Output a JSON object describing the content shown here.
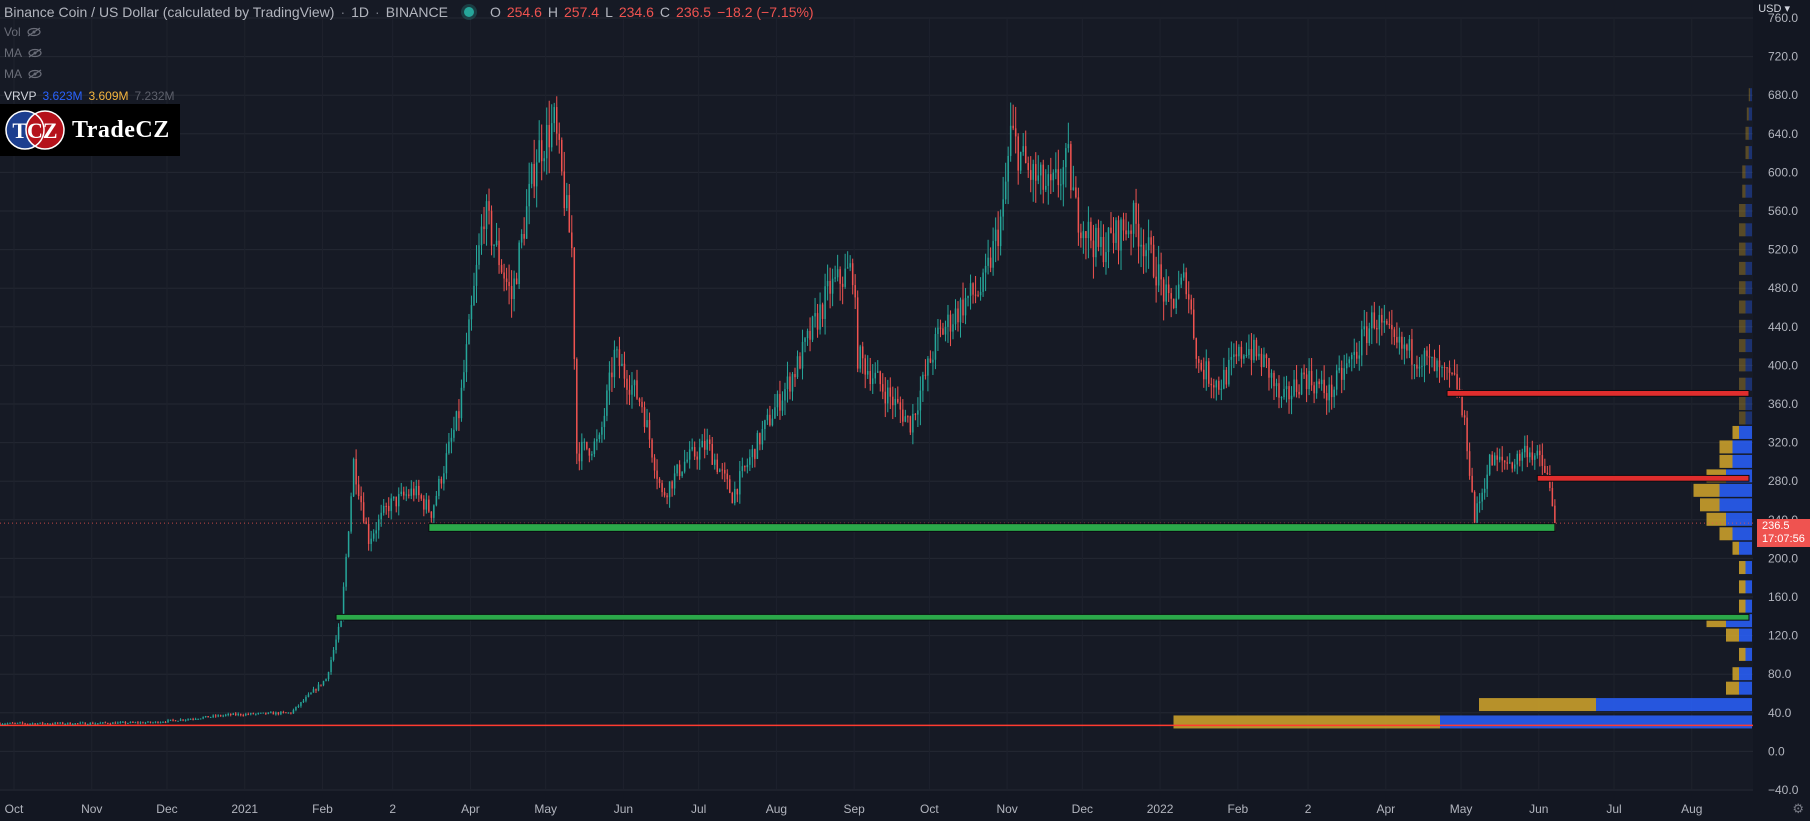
{
  "header": {
    "symbol_title": "Binance Coin / US Dollar (calculated by TradingView)",
    "interval": "1D",
    "exchange": "BINANCE",
    "ohlc": {
      "o_key": "O",
      "o_val": "254.6",
      "h_key": "H",
      "h_val": "257.4",
      "l_key": "L",
      "l_val": "234.6",
      "c_key": "C",
      "c_val": "236.5",
      "change": "−18.2 (−7.15%)"
    },
    "status_color": "#26a69a"
  },
  "indicators": [
    {
      "label": "Vol",
      "icon": "eye-hidden-icon"
    },
    {
      "label": "MA",
      "icon": "eye-hidden-icon"
    },
    {
      "label": "MA",
      "icon": "eye-hidden-icon"
    }
  ],
  "vrvp": {
    "label": "VRVP",
    "up_volume": "3.623M",
    "down_volume": "3.609M",
    "total_volume": "7.232M"
  },
  "logo": {
    "badge_text": "TCZ",
    "brand_text": "TradeCZ"
  },
  "price_axis": {
    "currency": "USD",
    "ticks": [
      "760.0",
      "720.0",
      "680.0",
      "640.0",
      "600.0",
      "560.0",
      "520.0",
      "480.0",
      "440.0",
      "400.0",
      "360.0",
      "320.0",
      "280.0",
      "240.0",
      "200.0",
      "160.0",
      "120.0",
      "80.0",
      "40.0",
      "0.0",
      "−40.0"
    ],
    "last_price": "236.5",
    "countdown": "17:07:56",
    "last_price_color": "#ef5350"
  },
  "time_axis": {
    "labels": [
      "Oct",
      "Nov",
      "Dec",
      "2021",
      "Feb",
      "2",
      "Apr",
      "May",
      "Jun",
      "Jul",
      "Aug",
      "Sep",
      "Oct",
      "Nov",
      "Dec",
      "2022",
      "Feb",
      "2",
      "Apr",
      "May",
      "Jun",
      "Jul",
      "Aug"
    ]
  },
  "colors": {
    "background": "#161a25",
    "up_candle": "#26a69a",
    "down_candle": "#ef5350",
    "support_zone": "#2ba84a",
    "resistance_zone": "#e02d2d",
    "horizontal_line": "#ff3b30",
    "vp_up": "#2962ff",
    "vp_down": "#d4a72c"
  },
  "chart_data": {
    "type": "candlestick",
    "title": "Binance Coin / US Dollar (calculated by TradingView)",
    "interval": "1D",
    "ylim": [
      -40,
      760
    ],
    "x_range": [
      "2020-10-01",
      "2022-08-31"
    ],
    "price_path": [
      {
        "date": "2020-10-01",
        "price": 29
      },
      {
        "date": "2020-11-01",
        "price": 29
      },
      {
        "date": "2020-12-01",
        "price": 30
      },
      {
        "date": "2021-01-01",
        "price": 38
      },
      {
        "date": "2021-01-25",
        "price": 40
      },
      {
        "date": "2021-02-08",
        "price": 75
      },
      {
        "date": "2021-02-14",
        "price": 135
      },
      {
        "date": "2021-02-19",
        "price": 300
      },
      {
        "date": "2021-02-25",
        "price": 220
      },
      {
        "date": "2021-03-05",
        "price": 255
      },
      {
        "date": "2021-03-15",
        "price": 270
      },
      {
        "date": "2021-03-22",
        "price": 248
      },
      {
        "date": "2021-04-02",
        "price": 350
      },
      {
        "date": "2021-04-12",
        "price": 560
      },
      {
        "date": "2021-04-23",
        "price": 470
      },
      {
        "date": "2021-05-03",
        "price": 620
      },
      {
        "date": "2021-05-10",
        "price": 650
      },
      {
        "date": "2021-05-17",
        "price": 520
      },
      {
        "date": "2021-05-19",
        "price": 310
      },
      {
        "date": "2021-05-28",
        "price": 320
      },
      {
        "date": "2021-06-03",
        "price": 410
      },
      {
        "date": "2021-06-14",
        "price": 360
      },
      {
        "date": "2021-06-22",
        "price": 265
      },
      {
        "date": "2021-07-01",
        "price": 300
      },
      {
        "date": "2021-07-10",
        "price": 318
      },
      {
        "date": "2021-07-20",
        "price": 265
      },
      {
        "date": "2021-08-01",
        "price": 330
      },
      {
        "date": "2021-08-15",
        "price": 400
      },
      {
        "date": "2021-08-28",
        "price": 480
      },
      {
        "date": "2021-09-06",
        "price": 500
      },
      {
        "date": "2021-09-08",
        "price": 410
      },
      {
        "date": "2021-09-20",
        "price": 370
      },
      {
        "date": "2021-09-29",
        "price": 340
      },
      {
        "date": "2021-10-10",
        "price": 430
      },
      {
        "date": "2021-10-22",
        "price": 470
      },
      {
        "date": "2021-10-28",
        "price": 480
      },
      {
        "date": "2021-11-05",
        "price": 560
      },
      {
        "date": "2021-11-08",
        "price": 640
      },
      {
        "date": "2021-11-15",
        "price": 600
      },
      {
        "date": "2021-11-24",
        "price": 580
      },
      {
        "date": "2021-12-01",
        "price": 610
      },
      {
        "date": "2021-12-04",
        "price": 560
      },
      {
        "date": "2021-12-13",
        "price": 520
      },
      {
        "date": "2021-12-27",
        "price": 550
      },
      {
        "date": "2022-01-05",
        "price": 500
      },
      {
        "date": "2022-01-10",
        "price": 460
      },
      {
        "date": "2022-01-17",
        "price": 490
      },
      {
        "date": "2022-01-22",
        "price": 400
      },
      {
        "date": "2022-01-30",
        "price": 380
      },
      {
        "date": "2022-02-10",
        "price": 420
      },
      {
        "date": "2022-02-18",
        "price": 400
      },
      {
        "date": "2022-02-24",
        "price": 360
      },
      {
        "date": "2022-03-05",
        "price": 390
      },
      {
        "date": "2022-03-15",
        "price": 370
      },
      {
        "date": "2022-03-25",
        "price": 410
      },
      {
        "date": "2022-04-02",
        "price": 450
      },
      {
        "date": "2022-04-10",
        "price": 420
      },
      {
        "date": "2022-04-20",
        "price": 410
      },
      {
        "date": "2022-04-29",
        "price": 390
      },
      {
        "date": "2022-05-05",
        "price": 380
      },
      {
        "date": "2022-05-09",
        "price": 320
      },
      {
        "date": "2022-05-12",
        "price": 240
      },
      {
        "date": "2022-05-18",
        "price": 300
      },
      {
        "date": "2022-05-28",
        "price": 300
      },
      {
        "date": "2022-06-02",
        "price": 315
      },
      {
        "date": "2022-06-07",
        "price": 300
      },
      {
        "date": "2022-06-10",
        "price": 285
      },
      {
        "date": "2022-06-13",
        "price": 236
      }
    ],
    "last": {
      "open": 254.6,
      "high": 257.4,
      "low": 234.6,
      "close": 236.5,
      "change": -18.2,
      "change_pct": -7.15
    },
    "horizontal_zones": [
      {
        "role": "support",
        "price_low": 228,
        "price_high": 236,
        "date_start": "2021-03-21",
        "date_end": "2022-06-13",
        "color": "#2ba84a"
      },
      {
        "role": "support",
        "price_low": 136,
        "price_high": 142,
        "date_start": "2021-02-12",
        "date_end": "2022-08-31",
        "color": "#2ba84a"
      },
      {
        "role": "resistance",
        "price_low": 368,
        "price_high": 374,
        "date_start": "2022-05-01",
        "date_end": "2022-08-31",
        "color": "#e02d2d"
      },
      {
        "role": "resistance",
        "price_low": 280,
        "price_high": 286,
        "date_start": "2022-06-06",
        "date_end": "2022-08-31",
        "color": "#e02d2d"
      }
    ],
    "horizontal_lines": [
      {
        "price": 27,
        "color": "#ff3b30"
      }
    ],
    "volume_profile": [
      {
        "price": 30,
        "up": 0.48,
        "down": 0.41
      },
      {
        "price": 48,
        "up": 0.24,
        "down": 0.18
      },
      {
        "price": 65,
        "up": 0.02,
        "down": 0.02
      },
      {
        "price": 80,
        "up": 0.02,
        "down": 0.01
      },
      {
        "price": 100,
        "up": 0.01,
        "down": 0.01
      },
      {
        "price": 120,
        "up": 0.02,
        "down": 0.02
      },
      {
        "price": 135,
        "up": 0.04,
        "down": 0.03
      },
      {
        "price": 150,
        "up": 0.01,
        "down": 0.01
      },
      {
        "price": 170,
        "up": 0.01,
        "down": 0.01
      },
      {
        "price": 190,
        "up": 0.01,
        "down": 0.01
      },
      {
        "price": 210,
        "up": 0.02,
        "down": 0.01
      },
      {
        "price": 225,
        "up": 0.03,
        "down": 0.02
      },
      {
        "price": 240,
        "up": 0.04,
        "down": 0.03
      },
      {
        "price": 255,
        "up": 0.05,
        "down": 0.03
      },
      {
        "price": 270,
        "up": 0.05,
        "down": 0.04
      },
      {
        "price": 285,
        "up": 0.04,
        "down": 0.03
      },
      {
        "price": 300,
        "up": 0.03,
        "down": 0.02
      },
      {
        "price": 315,
        "up": 0.03,
        "down": 0.02
      },
      {
        "price": 330,
        "up": 0.02,
        "down": 0.01
      },
      {
        "price": 345,
        "up": 0.01,
        "down": 0.01
      },
      {
        "price": 360,
        "up": 0.01,
        "down": 0.01
      },
      {
        "price": 380,
        "up": 0.01,
        "down": 0.01
      },
      {
        "price": 400,
        "up": 0.01,
        "down": 0.01
      },
      {
        "price": 420,
        "up": 0.01,
        "down": 0.01
      },
      {
        "price": 440,
        "up": 0.01,
        "down": 0.01
      },
      {
        "price": 460,
        "up": 0.01,
        "down": 0.01
      },
      {
        "price": 480,
        "up": 0.01,
        "down": 0.01
      },
      {
        "price": 500,
        "up": 0.01,
        "down": 0.01
      },
      {
        "price": 520,
        "up": 0.01,
        "down": 0.01
      },
      {
        "price": 540,
        "up": 0.01,
        "down": 0.01
      },
      {
        "price": 560,
        "up": 0.01,
        "down": 0.01
      },
      {
        "price": 580,
        "up": 0.01,
        "down": 0.005
      },
      {
        "price": 600,
        "up": 0.01,
        "down": 0.005
      },
      {
        "price": 620,
        "up": 0.005,
        "down": 0.005
      },
      {
        "price": 640,
        "up": 0.005,
        "down": 0.005
      },
      {
        "price": 660,
        "up": 0.005,
        "down": 0.003
      },
      {
        "price": 680,
        "up": 0.003,
        "down": 0.002
      }
    ]
  }
}
